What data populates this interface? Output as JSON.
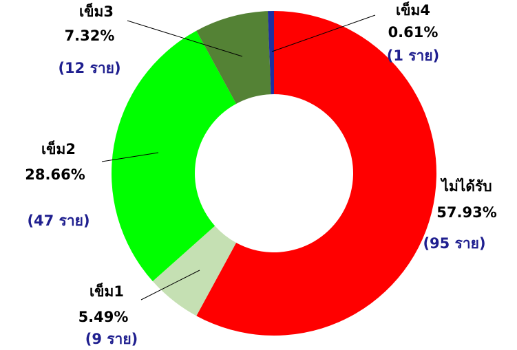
{
  "chart_data": {
    "type": "donut",
    "categories": [
      "ไม่ได้รับ",
      "เข็ม1",
      "เข็ม2",
      "เข็ม3",
      "เข็ม4"
    ],
    "values": [
      57.93,
      5.49,
      28.66,
      7.32,
      0.61
    ],
    "value_labels": [
      "57.93%",
      "5.49%",
      "28.66%",
      "7.32%",
      "0.61%"
    ],
    "count_labels": [
      "(95 ราย)",
      "(9 ราย)",
      "(47 ราย)",
      "(12 ราย)",
      "(1 ราย)"
    ],
    "colors": [
      "#ff0000",
      "#c5e0b3",
      "#00ff00",
      "#548235",
      "#1f2fa0"
    ]
  }
}
